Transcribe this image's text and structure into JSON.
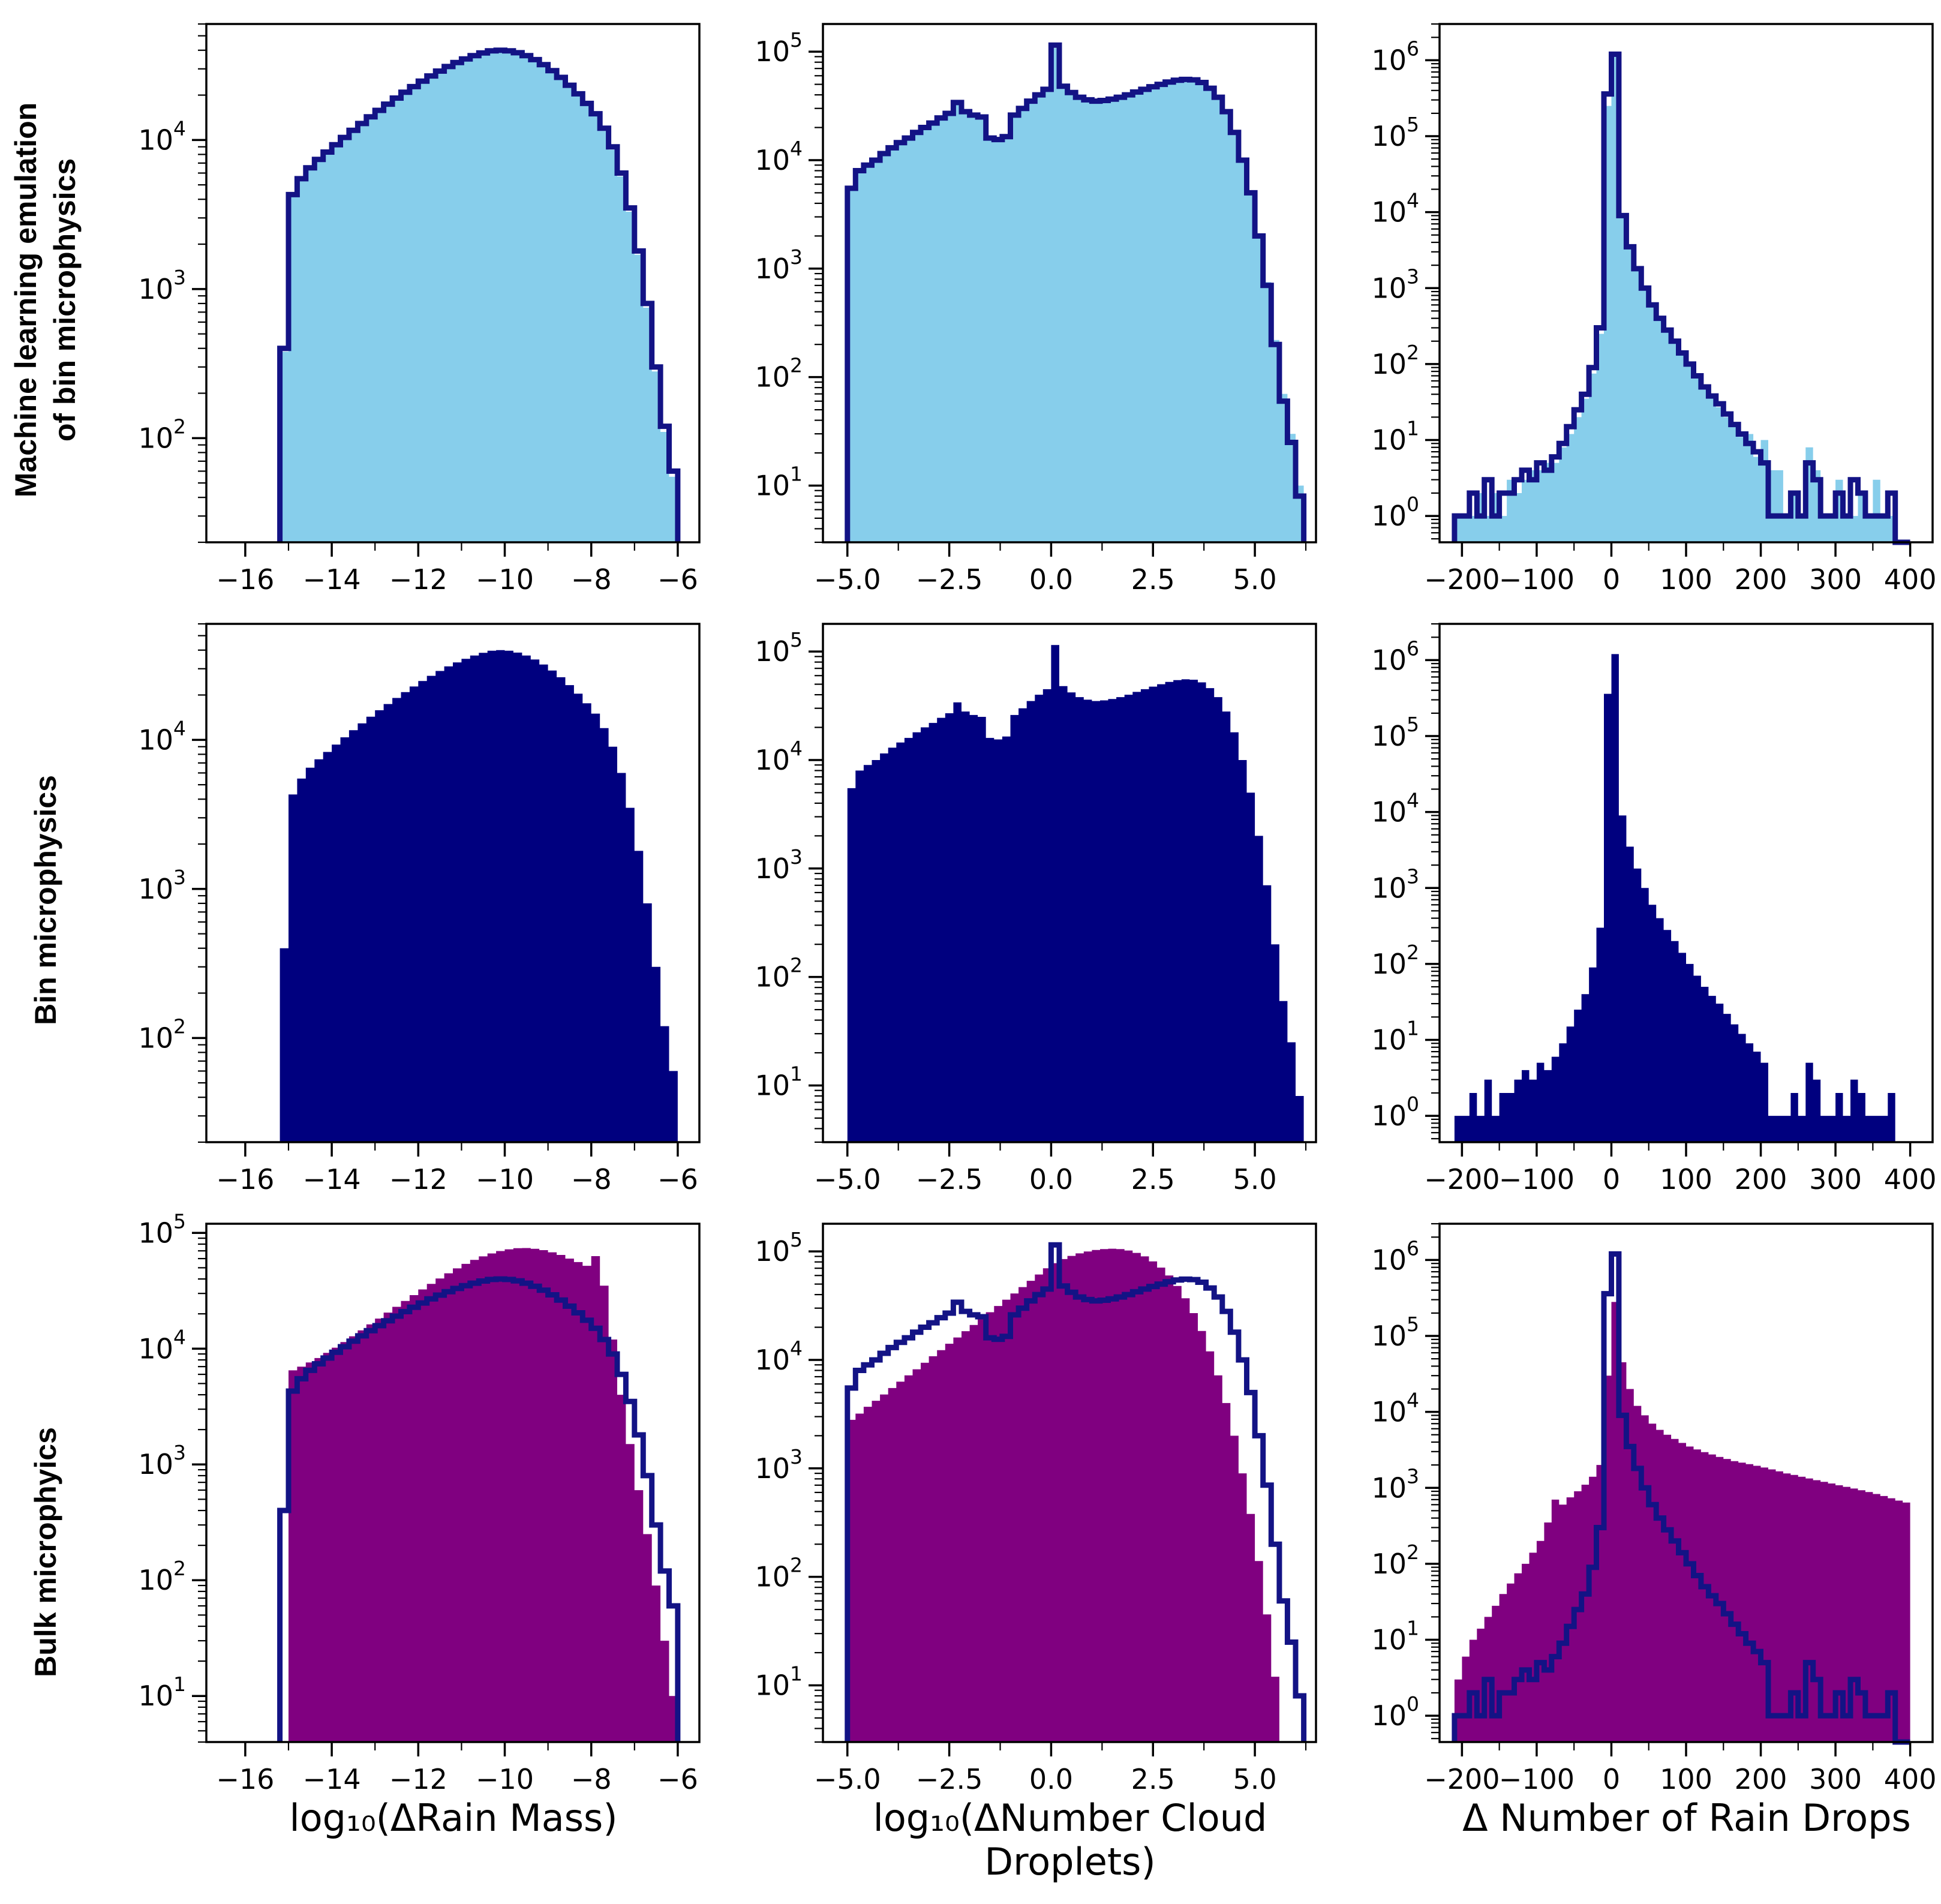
{
  "figure": {
    "rows": [
      {
        "label_lines": [
          "Machine  learning  emulation",
          "of bin microphysics"
        ]
      },
      {
        "label_lines": [
          "Bin microphysics",
          ""
        ]
      },
      {
        "label_lines": [
          "Bulk microphyics",
          ""
        ]
      }
    ],
    "xlabels": [
      "log₁₀(ΔRain Mass)",
      "log₁₀(ΔNumber Cloud Droplets)",
      "Δ Number of Rain Drops"
    ]
  },
  "colors": {
    "skyblue": "#87CEEB",
    "navy_fill": "#00007F",
    "navy_line": "#131385",
    "purple": "#800080"
  },
  "chart_data": {
    "type": "histogram-grid",
    "yscale": "log",
    "grid": "off",
    "legend": "none",
    "series": {
      "rain_bin": {
        "x0": -15.1,
        "dx": 0.2,
        "y": [
          400,
          4300,
          5500,
          6500,
          7400,
          8300,
          9300,
          10400,
          11600,
          12900,
          14300,
          15800,
          17400,
          19100,
          20900,
          22800,
          24800,
          26900,
          29000,
          31100,
          33100,
          35000,
          36800,
          38400,
          39600,
          40000,
          39600,
          38500,
          36800,
          34600,
          32000,
          29200,
          26300,
          23300,
          20400,
          17600,
          15000,
          12000,
          9000,
          6000,
          3500,
          1800,
          800,
          300,
          120,
          60
        ]
      },
      "rain_ml": {
        "x0": -15.1,
        "dx": 0.2,
        "y": [
          380,
          4200,
          5600,
          6600,
          7600,
          8500,
          9500,
          10600,
          11900,
          13200,
          14600,
          16100,
          17800,
          19500,
          21400,
          23300,
          25300,
          27400,
          29600,
          31700,
          33800,
          35700,
          37500,
          39200,
          41000,
          41500,
          40200,
          38800,
          37000,
          34800,
          32200,
          29400,
          26400,
          23400,
          20300,
          17400,
          14600,
          11500,
          8600,
          5700,
          3300,
          1700,
          750,
          280,
          110,
          55
        ]
      },
      "rain_bulk": {
        "x0": -14.9,
        "dx": 0.2,
        "y": [
          6500,
          7000,
          7600,
          8300,
          9200,
          10200,
          11400,
          12800,
          14400,
          16200,
          18200,
          20500,
          23000,
          25800,
          29000,
          32500,
          36300,
          40400,
          44800,
          49400,
          54000,
          58500,
          62700,
          66500,
          69700,
          72200,
          73800,
          74000,
          73000,
          71000,
          68000,
          64500,
          60000,
          56000,
          52000,
          63000,
          35000,
          12000,
          4000,
          1500,
          600,
          250,
          90,
          30,
          10
        ]
      },
      "cloud_bin": {
        "x0": -4.9,
        "dx": 0.2,
        "y": [
          5500,
          8000,
          9000,
          10000,
          11500,
          13000,
          14500,
          16000,
          18000,
          20000,
          22000,
          24500,
          27000,
          34000,
          28000,
          26000,
          25000,
          16000,
          15500,
          16500,
          26000,
          30000,
          35000,
          40000,
          45000,
          115000,
          48000,
          42000,
          38000,
          36000,
          35000,
          35500,
          36500,
          38000,
          40000,
          42500,
          45000,
          47500,
          50000,
          52500,
          54500,
          55500,
          55000,
          52000,
          46000,
          38000,
          28000,
          18000,
          10000,
          5000,
          2000,
          700,
          200,
          60,
          25,
          8
        ]
      },
      "cloud_ml": {
        "x0": -4.9,
        "dx": 0.2,
        "y": [
          5400,
          7900,
          9100,
          10100,
          11600,
          13100,
          14600,
          16200,
          18100,
          20200,
          22300,
          24700,
          27300,
          33500,
          28500,
          26300,
          25200,
          16300,
          15800,
          16800,
          26500,
          30500,
          35500,
          40500,
          45500,
          108000,
          50000,
          43000,
          38500,
          36300,
          35300,
          35800,
          36800,
          38300,
          40300,
          42800,
          45300,
          47800,
          50300,
          52800,
          54800,
          55800,
          55300,
          52300,
          46300,
          38300,
          28300,
          18300,
          10200,
          5100,
          2100,
          750,
          220,
          70,
          30,
          10
        ]
      },
      "cloud_bulk": {
        "x0": -4.9,
        "dx": 0.2,
        "y": [
          2800,
          3200,
          3700,
          4200,
          4800,
          5500,
          6300,
          7200,
          8200,
          9400,
          10800,
          12300,
          14100,
          16100,
          18400,
          21000,
          24000,
          27500,
          31400,
          35900,
          41000,
          46900,
          53600,
          61300,
          70000,
          78000,
          85000,
          91000,
          96000,
          100000,
          103000,
          105000,
          106000,
          105000,
          102000,
          97000,
          90000,
          81000,
          71000,
          60000,
          48000,
          37000,
          27000,
          18500,
          12000,
          7200,
          4000,
          2000,
          900,
          380,
          140,
          45,
          12,
          3
        ]
      },
      "drops_bin": {
        "x0": -205,
        "dx": 10,
        "y": [
          1,
          1,
          2,
          1,
          3,
          1,
          2,
          2,
          3,
          4,
          3,
          5,
          4,
          6,
          9,
          15,
          25,
          40,
          90,
          300,
          360000,
          1200000,
          9000,
          3500,
          1800,
          1000,
          600,
          400,
          280,
          200,
          140,
          100,
          70,
          50,
          38,
          30,
          22,
          16,
          12,
          9,
          7,
          5,
          1,
          1,
          1,
          2,
          1,
          5,
          3,
          1,
          1,
          2,
          1,
          3,
          2,
          1,
          1,
          1,
          2,
          0,
          0
        ]
      },
      "drops_ml": {
        "x0": -205,
        "dx": 10,
        "y": [
          1,
          1,
          1,
          2,
          1,
          2,
          1,
          3,
          2,
          3,
          4,
          4,
          5,
          5,
          8,
          12,
          20,
          35,
          75,
          250,
          250000,
          1150000,
          8500,
          3300,
          1700,
          950,
          580,
          380,
          270,
          190,
          135,
          95,
          68,
          48,
          36,
          27,
          20,
          15,
          11,
          12,
          6,
          10,
          4,
          4,
          1,
          2,
          1,
          8,
          4,
          1,
          1,
          3,
          1,
          1,
          2,
          1,
          3,
          1,
          1,
          0,
          0
        ]
      },
      "drops_bulk": {
        "x0": -205,
        "dx": 10,
        "y": [
          3,
          6,
          10,
          14,
          20,
          28,
          40,
          55,
          75,
          100,
          140,
          200,
          350,
          700,
          600,
          750,
          900,
          1100,
          1400,
          2000,
          30000,
          280000,
          45000,
          20000,
          12000,
          9000,
          7000,
          5800,
          5000,
          4400,
          3900,
          3500,
          3200,
          2950,
          2750,
          2550,
          2400,
          2250,
          2150,
          2050,
          1950,
          1850,
          1750,
          1650,
          1550,
          1480,
          1400,
          1330,
          1260,
          1200,
          1140,
          1080,
          1030,
          980,
          930,
          880,
          830,
          780,
          730,
          680,
          640
        ]
      }
    },
    "panels": [
      {
        "name": "ml-rain-mass",
        "row": 0,
        "col": 0,
        "fill": "rain_ml",
        "fill_color": "skyblue",
        "outline": "rain_bin",
        "xlim": [
          -16.9,
          -5.5
        ],
        "ylim": [
          20,
          60000
        ],
        "xticks": [
          {
            "v": -16,
            "l": "−16"
          },
          {
            "v": -14,
            "l": "−14"
          },
          {
            "v": -12,
            "l": "−12"
          },
          {
            "v": -10,
            "l": "−10"
          },
          {
            "v": -8,
            "l": "−8"
          },
          {
            "v": -6,
            "l": "−6"
          }
        ],
        "xminor": [
          -15,
          -13,
          -11,
          -9,
          -7
        ]
      },
      {
        "name": "ml-cloud-droplets",
        "row": 0,
        "col": 1,
        "fill": "cloud_ml",
        "fill_color": "skyblue",
        "outline": "cloud_bin",
        "xlim": [
          -5.6,
          6.5
        ],
        "ylim": [
          3,
          180000
        ],
        "xticks": [
          {
            "v": -5,
            "l": "−5.0"
          },
          {
            "v": -2.5,
            "l": "−2.5"
          },
          {
            "v": 0,
            "l": "0.0"
          },
          {
            "v": 2.5,
            "l": "2.5"
          },
          {
            "v": 5,
            "l": "5.0"
          }
        ],
        "xminor": [
          -3.75,
          -1.25,
          1.25,
          3.75,
          6.25
        ]
      },
      {
        "name": "ml-rain-drops",
        "row": 0,
        "col": 2,
        "fill": "drops_ml",
        "fill_color": "skyblue",
        "outline": "drops_bin",
        "xlim": [
          -230,
          430
        ],
        "ylim": [
          0.45,
          3000000
        ],
        "xticks": [
          {
            "v": -200,
            "l": "−200"
          },
          {
            "v": -100,
            "l": "−100"
          },
          {
            "v": 0,
            "l": "0"
          },
          {
            "v": 100,
            "l": "100"
          },
          {
            "v": 200,
            "l": "200"
          },
          {
            "v": 300,
            "l": "300"
          },
          {
            "v": 400,
            "l": "400"
          }
        ],
        "xminor": [
          -150,
          -50,
          50,
          150,
          250,
          350
        ]
      },
      {
        "name": "bin-rain-mass",
        "row": 1,
        "col": 0,
        "fill": "rain_bin",
        "fill_color": "navy_fill",
        "outline": null,
        "xlim": [
          -16.9,
          -5.5
        ],
        "ylim": [
          20,
          60000
        ],
        "xticks": [
          {
            "v": -16,
            "l": "−16"
          },
          {
            "v": -14,
            "l": "−14"
          },
          {
            "v": -12,
            "l": "−12"
          },
          {
            "v": -10,
            "l": "−10"
          },
          {
            "v": -8,
            "l": "−8"
          },
          {
            "v": -6,
            "l": "−6"
          }
        ],
        "xminor": [
          -15,
          -13,
          -11,
          -9,
          -7
        ]
      },
      {
        "name": "bin-cloud-droplets",
        "row": 1,
        "col": 1,
        "fill": "cloud_bin",
        "fill_color": "navy_fill",
        "outline": null,
        "xlim": [
          -5.6,
          6.5
        ],
        "ylim": [
          3,
          180000
        ],
        "xticks": [
          {
            "v": -5,
            "l": "−5.0"
          },
          {
            "v": -2.5,
            "l": "−2.5"
          },
          {
            "v": 0,
            "l": "0.0"
          },
          {
            "v": 2.5,
            "l": "2.5"
          },
          {
            "v": 5,
            "l": "5.0"
          }
        ],
        "xminor": [
          -3.75,
          -1.25,
          1.25,
          3.75,
          6.25
        ]
      },
      {
        "name": "bin-rain-drops",
        "row": 1,
        "col": 2,
        "fill": "drops_bin",
        "fill_color": "navy_fill",
        "outline": null,
        "xlim": [
          -230,
          430
        ],
        "ylim": [
          0.45,
          3000000
        ],
        "xticks": [
          {
            "v": -200,
            "l": "−200"
          },
          {
            "v": -100,
            "l": "−100"
          },
          {
            "v": 0,
            "l": "0"
          },
          {
            "v": 100,
            "l": "100"
          },
          {
            "v": 200,
            "l": "200"
          },
          {
            "v": 300,
            "l": "300"
          },
          {
            "v": 400,
            "l": "400"
          }
        ],
        "xminor": [
          -150,
          -50,
          50,
          150,
          250,
          350
        ]
      },
      {
        "name": "bulk-rain-mass",
        "row": 2,
        "col": 0,
        "fill": "rain_bulk",
        "fill_color": "purple",
        "outline": "rain_bin",
        "xlim": [
          -16.9,
          -5.5
        ],
        "ylim": [
          4,
          120000
        ],
        "xticks": [
          {
            "v": -16,
            "l": "−16"
          },
          {
            "v": -14,
            "l": "−14"
          },
          {
            "v": -12,
            "l": "−12"
          },
          {
            "v": -10,
            "l": "−10"
          },
          {
            "v": -8,
            "l": "−8"
          },
          {
            "v": -6,
            "l": "−6"
          }
        ],
        "xminor": [
          -15,
          -13,
          -11,
          -9,
          -7
        ]
      },
      {
        "name": "bulk-cloud-droplets",
        "row": 2,
        "col": 1,
        "fill": "cloud_bulk",
        "fill_color": "purple",
        "outline": "cloud_bin",
        "xlim": [
          -5.6,
          6.5
        ],
        "ylim": [
          3,
          180000
        ],
        "xticks": [
          {
            "v": -5,
            "l": "−5.0"
          },
          {
            "v": -2.5,
            "l": "−2.5"
          },
          {
            "v": 0,
            "l": "0.0"
          },
          {
            "v": 2.5,
            "l": "2.5"
          },
          {
            "v": 5,
            "l": "5.0"
          }
        ],
        "xminor": [
          -3.75,
          -1.25,
          1.25,
          3.75,
          6.25
        ]
      },
      {
        "name": "bulk-rain-drops",
        "row": 2,
        "col": 2,
        "fill": "drops_bulk",
        "fill_color": "purple",
        "outline": "drops_bin",
        "xlim": [
          -230,
          430
        ],
        "ylim": [
          0.45,
          3000000
        ],
        "xticks": [
          {
            "v": -200,
            "l": "−200"
          },
          {
            "v": -100,
            "l": "−100"
          },
          {
            "v": 0,
            "l": "0"
          },
          {
            "v": 100,
            "l": "100"
          },
          {
            "v": 200,
            "l": "200"
          },
          {
            "v": 300,
            "l": "300"
          },
          {
            "v": 400,
            "l": "400"
          }
        ],
        "xminor": [
          -150,
          -50,
          50,
          150,
          250,
          350
        ]
      }
    ]
  }
}
